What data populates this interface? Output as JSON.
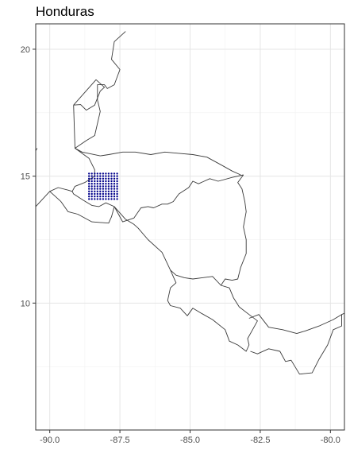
{
  "title": "Honduras",
  "chart_data": {
    "type": "scatter",
    "title": "Honduras",
    "xlabel": "",
    "ylabel": "",
    "xlim": [
      -90.5,
      -79.5
    ],
    "ylim": [
      5.0,
      21.0
    ],
    "x_ticks": [
      -90.0,
      -87.5,
      -85.0,
      -82.5,
      -80.0
    ],
    "x_tick_labels": [
      "-90.0",
      "-87.5",
      "-85.0",
      "-82.5",
      "-80.0"
    ],
    "y_ticks": [
      10,
      15,
      20
    ],
    "y_tick_labels": [
      "10",
      "15",
      "20"
    ],
    "grid": true,
    "point_color": "#00008b",
    "border_color": "#3a3a3a",
    "grid_points": {
      "lon_min": -88.6,
      "lon_max": -87.6,
      "lon_step": 0.1,
      "lat_min": 14.1,
      "lat_max": 15.1,
      "lat_step": 0.1
    },
    "borders": [
      [
        [
          -87.3,
          20.7
        ],
        [
          -87.7,
          20.3
        ],
        [
          -87.8,
          19.6
        ],
        [
          -87.5,
          19.2
        ],
        [
          -87.7,
          18.6
        ],
        [
          -87.95,
          18.45
        ],
        [
          -88.05,
          18.6
        ],
        [
          -88.3,
          18.6
        ],
        [
          -88.3,
          18.0
        ],
        [
          -88.2,
          17.55
        ],
        [
          -88.4,
          16.6
        ],
        [
          -88.7,
          16.4
        ],
        [
          -89.1,
          16.1
        ],
        [
          -88.85,
          15.95
        ],
        [
          -88.2,
          15.8
        ],
        [
          -87.9,
          15.85
        ],
        [
          -87.4,
          15.95
        ],
        [
          -86.95,
          15.95
        ],
        [
          -86.4,
          15.85
        ],
        [
          -85.9,
          15.95
        ],
        [
          -85.4,
          15.9
        ],
        [
          -84.9,
          15.85
        ],
        [
          -84.4,
          15.75
        ],
        [
          -83.9,
          15.45
        ],
        [
          -83.5,
          15.2
        ],
        [
          -83.2,
          15.05
        ]
      ],
      [
        [
          -89.15,
          17.8
        ],
        [
          -88.9,
          17.82
        ],
        [
          -88.7,
          17.6
        ],
        [
          -88.4,
          17.8
        ],
        [
          -88.2,
          18.35
        ],
        [
          -88.05,
          18.5
        ],
        [
          -88.35,
          18.8
        ],
        [
          -89.15,
          17.8
        ]
      ],
      [
        [
          -89.15,
          17.8
        ],
        [
          -89.1,
          16.1
        ],
        [
          -88.6,
          15.7
        ],
        [
          -88.4,
          15.25
        ],
        [
          -88.4,
          15.0
        ],
        [
          -88.75,
          14.75
        ],
        [
          -89.1,
          14.6
        ],
        [
          -89.2,
          14.4
        ],
        [
          -89.35,
          14.45
        ],
        [
          -89.7,
          14.55
        ],
        [
          -90.0,
          14.4
        ],
        [
          -89.8,
          14.2
        ],
        [
          -89.6,
          14.0
        ],
        [
          -89.35,
          13.6
        ],
        [
          -89.0,
          13.5
        ],
        [
          -88.5,
          13.2
        ],
        [
          -87.9,
          13.15
        ],
        [
          -87.8,
          13.4
        ],
        [
          -87.7,
          13.8
        ]
      ],
      [
        [
          -87.7,
          13.8
        ],
        [
          -87.3,
          13.3
        ],
        [
          -87.0,
          13.1
        ],
        [
          -86.85,
          12.95
        ],
        [
          -86.5,
          12.5
        ],
        [
          -86.0,
          12.0
        ],
        [
          -85.7,
          11.3
        ],
        [
          -85.5,
          11.1
        ],
        [
          -85.2,
          11.0
        ],
        [
          -84.9,
          10.95
        ],
        [
          -84.2,
          11.05
        ],
        [
          -83.9,
          10.7
        ],
        [
          -83.75,
          10.95
        ],
        [
          -83.5,
          10.9
        ],
        [
          -83.3,
          10.95
        ],
        [
          -83.2,
          11.4
        ],
        [
          -83.0,
          11.95
        ],
        [
          -83.0,
          12.5
        ],
        [
          -83.1,
          13.0
        ],
        [
          -83.0,
          13.6
        ],
        [
          -83.05,
          14.0
        ],
        [
          -83.15,
          14.5
        ],
        [
          -83.3,
          14.75
        ],
        [
          -83.1,
          15.05
        ]
      ],
      [
        [
          -83.1,
          15.05
        ],
        [
          -83.5,
          14.95
        ],
        [
          -84.0,
          14.8
        ],
        [
          -84.3,
          14.9
        ],
        [
          -84.7,
          14.7
        ],
        [
          -84.9,
          14.8
        ],
        [
          -85.05,
          14.55
        ],
        [
          -85.4,
          14.3
        ],
        [
          -85.6,
          14.0
        ],
        [
          -85.8,
          13.9
        ],
        [
          -86.0,
          13.9
        ],
        [
          -86.3,
          13.75
        ],
        [
          -86.5,
          13.8
        ],
        [
          -86.75,
          13.75
        ],
        [
          -87.0,
          13.35
        ],
        [
          -87.4,
          13.2
        ],
        [
          -87.7,
          13.8
        ],
        [
          -88.0,
          13.95
        ],
        [
          -88.25,
          13.8
        ],
        [
          -88.5,
          13.85
        ],
        [
          -88.8,
          14.05
        ],
        [
          -89.15,
          14.3
        ],
        [
          -89.2,
          14.4
        ]
      ],
      [
        [
          -85.7,
          11.3
        ],
        [
          -85.5,
          10.8
        ],
        [
          -85.7,
          10.6
        ],
        [
          -85.8,
          10.1
        ],
        [
          -85.7,
          9.9
        ],
        [
          -85.35,
          9.8
        ],
        [
          -85.1,
          9.5
        ],
        [
          -84.9,
          9.8
        ],
        [
          -84.6,
          9.6
        ],
        [
          -84.2,
          9.35
        ],
        [
          -83.75,
          8.95
        ],
        [
          -83.6,
          8.5
        ],
        [
          -83.3,
          8.35
        ],
        [
          -83.0,
          8.1
        ],
        [
          -82.9,
          8.35
        ],
        [
          -82.95,
          8.6
        ],
        [
          -82.75,
          9.0
        ],
        [
          -82.6,
          9.3
        ],
        [
          -82.9,
          9.55
        ],
        [
          -83.25,
          9.85
        ],
        [
          -83.45,
          10.2
        ],
        [
          -83.6,
          10.6
        ],
        [
          -83.9,
          10.7
        ]
      ],
      [
        [
          -82.9,
          9.4
        ],
        [
          -82.55,
          9.55
        ],
        [
          -82.2,
          9.05
        ],
        [
          -81.7,
          8.95
        ],
        [
          -81.2,
          8.8
        ],
        [
          -80.9,
          8.9
        ],
        [
          -80.4,
          9.1
        ],
        [
          -79.9,
          9.35
        ],
        [
          -79.6,
          9.55
        ],
        [
          -79.6,
          9.1
        ],
        [
          -79.9,
          8.95
        ],
        [
          -80.1,
          8.35
        ],
        [
          -80.4,
          7.8
        ],
        [
          -80.65,
          7.25
        ],
        [
          -81.1,
          7.2
        ],
        [
          -81.4,
          7.75
        ],
        [
          -81.6,
          7.7
        ],
        [
          -81.8,
          8.1
        ],
        [
          -82.2,
          8.2
        ],
        [
          -82.6,
          8.0
        ],
        [
          -82.85,
          8.1
        ]
      ],
      [
        [
          -79.6,
          9.55
        ],
        [
          -79.5,
          9.6
        ]
      ],
      [
        [
          -90.5,
          17.75
        ],
        [
          -91.2,
          17.75
        ]
      ],
      [
        [
          -90.45,
          16.1
        ],
        [
          -90.5,
          16.0
        ]
      ],
      [
        [
          -90.5,
          15.75
        ],
        [
          -90.5,
          16.3
        ]
      ],
      [
        [
          -90.0,
          14.4
        ],
        [
          -90.5,
          13.8
        ]
      ]
    ]
  }
}
